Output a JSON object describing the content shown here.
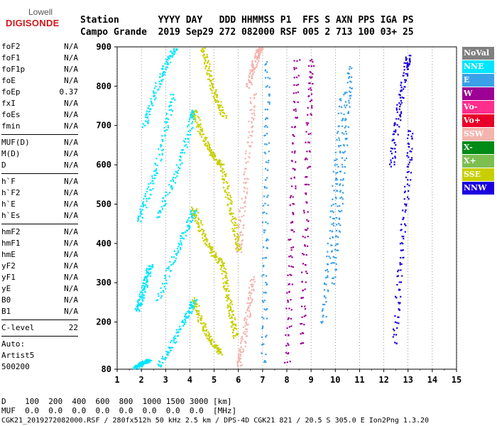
{
  "logo": {
    "line1": "Lowell",
    "line2": "DIGISONDE"
  },
  "header": {
    "labels": "Station       YYYY DAY   DDD HHMMSS P1  FFS S AXN PPS IGA PS",
    "values": "Campo Grande  2019 Sep29 272 082000 RSF 005 2 713 100 03+ 25"
  },
  "params": {
    "group1": [
      {
        "name": "foF2",
        "value": "N/A"
      },
      {
        "name": "foF1",
        "value": "N/A"
      },
      {
        "name": "foF1p",
        "value": "N/A"
      },
      {
        "name": "foE",
        "value": "N/A"
      },
      {
        "name": "foEp",
        "value": "0.37"
      },
      {
        "name": "fxI",
        "value": "N/A"
      },
      {
        "name": "foEs",
        "value": "N/A"
      },
      {
        "name": "fmin",
        "value": "N/A"
      }
    ],
    "group2": [
      {
        "name": "MUF(D)",
        "value": "N/A"
      },
      {
        "name": "M(D)",
        "value": "N/A"
      },
      {
        "name": "D",
        "value": "N/A"
      }
    ],
    "group3": [
      {
        "name": "h`F",
        "value": "N/A"
      },
      {
        "name": "h`F2",
        "value": "N/A"
      },
      {
        "name": "h`E",
        "value": "N/A"
      },
      {
        "name": "h`Es",
        "value": "N/A"
      }
    ],
    "group4": [
      {
        "name": "hmF2",
        "value": "N/A"
      },
      {
        "name": "hmF1",
        "value": "N/A"
      },
      {
        "name": "hmE",
        "value": "N/A"
      },
      {
        "name": "yF2",
        "value": "N/A"
      },
      {
        "name": "yF1",
        "value": "N/A"
      },
      {
        "name": "yE",
        "value": "N/A"
      },
      {
        "name": "B0",
        "value": "N/A"
      },
      {
        "name": "B1",
        "value": "N/A"
      }
    ],
    "group5": [
      {
        "name": "C-level",
        "value": "22"
      }
    ],
    "auto": [
      "Auto:",
      "Artist5",
      "500200"
    ]
  },
  "legend": [
    {
      "label": "NoVal",
      "color": "#808080"
    },
    {
      "label": "NNE",
      "color": "#00e5ff"
    },
    {
      "label": "E",
      "color": "#3aa0e8"
    },
    {
      "label": "W",
      "color": "#9c0094"
    },
    {
      "label": "Vo-",
      "color": "#ff2d8c"
    },
    {
      "label": "Vo+",
      "color": "#e8002a"
    },
    {
      "label": "SSW",
      "color": "#f4b4ae"
    },
    {
      "label": "X-",
      "color": "#008a16"
    },
    {
      "label": "X+",
      "color": "#7cbf50"
    },
    {
      "label": "SSE",
      "color": "#c8cf00"
    },
    {
      "label": "NNW",
      "color": "#1a00e0"
    }
  ],
  "chart_data": {
    "type": "scatter",
    "title": "",
    "xlabel": "",
    "ylabel": "",
    "xlim": [
      1,
      15
    ],
    "ylim": [
      80,
      900
    ],
    "x_ticks": [
      "1",
      "2",
      "3",
      "4",
      "5",
      "6",
      "7",
      "8",
      "9",
      "10",
      "11",
      "12",
      "13",
      "14",
      "15"
    ],
    "y_ticks": [
      "80",
      "200",
      "300",
      "400",
      "500",
      "600",
      "700",
      "800",
      "900"
    ],
    "series": [
      {
        "name": "NNE",
        "color": "#00e5ff",
        "traces": [
          {
            "x": [
              1.75,
              1.85,
              2.0,
              2.15,
              2.3
            ],
            "y": [
              85,
              90,
              95,
              100,
              105
            ]
          },
          {
            "x": [
              1.8,
              1.95,
              2.1,
              2.25,
              2.35
            ],
            "y": [
              230,
              260,
              290,
              320,
              350
            ]
          },
          {
            "x": [
              2.7,
              3.2,
              3.7,
              4.05,
              4.15
            ],
            "y": [
              470,
              550,
              630,
              720,
              740
            ]
          },
          {
            "x": [
              2.7,
              3.2,
              3.7,
              4.05,
              4.15
            ],
            "y": [
              90,
              140,
              200,
              240,
              260
            ]
          },
          {
            "x": [
              2.7,
              3.2,
              3.7,
              4.05,
              4.15
            ],
            "y": [
              260,
              350,
              420,
              470,
              490
            ]
          },
          {
            "x": [
              1.9,
              2.2,
              2.6,
              3.0,
              3.3
            ],
            "y": [
              460,
              520,
              590,
              700,
              790
            ]
          },
          {
            "x": [
              2.1,
              2.4,
              2.8,
              3.1,
              3.4
            ],
            "y": [
              700,
              760,
              830,
              870,
              900
            ]
          }
        ]
      },
      {
        "name": "SSE",
        "color": "#c8cf00",
        "traces": [
          {
            "x": [
              4.15,
              4.4,
              4.7,
              5.0,
              5.3
            ],
            "y": [
              740,
              690,
              650,
              620,
              600
            ]
          },
          {
            "x": [
              4.15,
              4.4,
              4.7,
              5.0,
              5.3
            ],
            "y": [
              490,
              440,
              400,
              370,
              350
            ]
          },
          {
            "x": [
              4.15,
              4.4,
              4.7,
              5.0,
              5.3
            ],
            "y": [
              260,
              210,
              170,
              140,
              120
            ]
          },
          {
            "x": [
              4.5,
              4.7,
              4.9,
              5.15,
              5.4
            ],
            "y": [
              900,
              850,
              800,
              760,
              720
            ]
          },
          {
            "x": [
              5.3,
              5.5,
              5.7,
              5.9,
              6.0
            ],
            "y": [
              600,
              540,
              480,
              420,
              380
            ]
          },
          {
            "x": [
              5.3,
              5.45,
              5.6,
              5.75,
              5.9
            ],
            "y": [
              350,
              300,
              250,
              200,
              160
            ]
          }
        ]
      },
      {
        "name": "SSW",
        "color": "#f4b4ae",
        "traces": [
          {
            "x": [
              6.0,
              6.1,
              6.3,
              6.5,
              6.6
            ],
            "y": [
              380,
              470,
              580,
              700,
              790
            ]
          },
          {
            "x": [
              6.0,
              6.15,
              6.3,
              6.45,
              6.6
            ],
            "y": [
              90,
              140,
              200,
              260,
              320
            ]
          },
          {
            "x": [
              6.4,
              6.55,
              6.7,
              6.8,
              6.9
            ],
            "y": [
              800,
              840,
              870,
              890,
              900
            ]
          }
        ]
      },
      {
        "name": "E",
        "color": "#3aa0e8",
        "traces": [
          {
            "x": [
              7.0,
              7.05,
              7.1,
              7.15,
              7.2
            ],
            "y": [
              100,
              300,
              500,
              700,
              880
            ]
          },
          {
            "x": [
              9.5,
              9.7,
              9.9,
              10.1,
              10.3
            ],
            "y": [
              200,
              350,
              500,
              650,
              800
            ]
          },
          {
            "x": [
              9.9,
              10.1,
              10.3,
              10.5,
              10.6
            ],
            "y": [
              300,
              450,
              600,
              750,
              860
            ]
          }
        ]
      },
      {
        "name": "W",
        "color": "#9c0094",
        "traces": [
          {
            "x": [
              8.0,
              8.1,
              8.2,
              8.3,
              8.4
            ],
            "y": [
              100,
              300,
              500,
              700,
              890
            ]
          },
          {
            "x": [
              8.6,
              8.7,
              8.8,
              8.9,
              9.0
            ],
            "y": [
              150,
              350,
              550,
              750,
              880
            ]
          }
        ]
      },
      {
        "name": "NNW",
        "color": "#1a00e0",
        "traces": [
          {
            "x": [
              12.4,
              12.6,
              12.8,
              13.0,
              13.1
            ],
            "y": [
              150,
              300,
              450,
              600,
              700
            ]
          },
          {
            "x": [
              12.3,
              12.5,
              12.7,
              12.9,
              13.0
            ],
            "y": [
              600,
              700,
              780,
              850,
              880
            ]
          }
        ]
      }
    ]
  },
  "bottom": {
    "d_row": "D    100  200  400  600  800  1000 1500 3000 [km]",
    "muf_row": "MUF  0.0  0.0  0.0  0.0  0.0  0.0  0.0  0.0  [MHz]"
  },
  "footer": "CGK21_2019272082000.RSF / 280fx512h 50 kHz 2.5 km / DPS-4D CGK21 821 / 20.5 S 305.0 E Ion2Png 1.3.20"
}
